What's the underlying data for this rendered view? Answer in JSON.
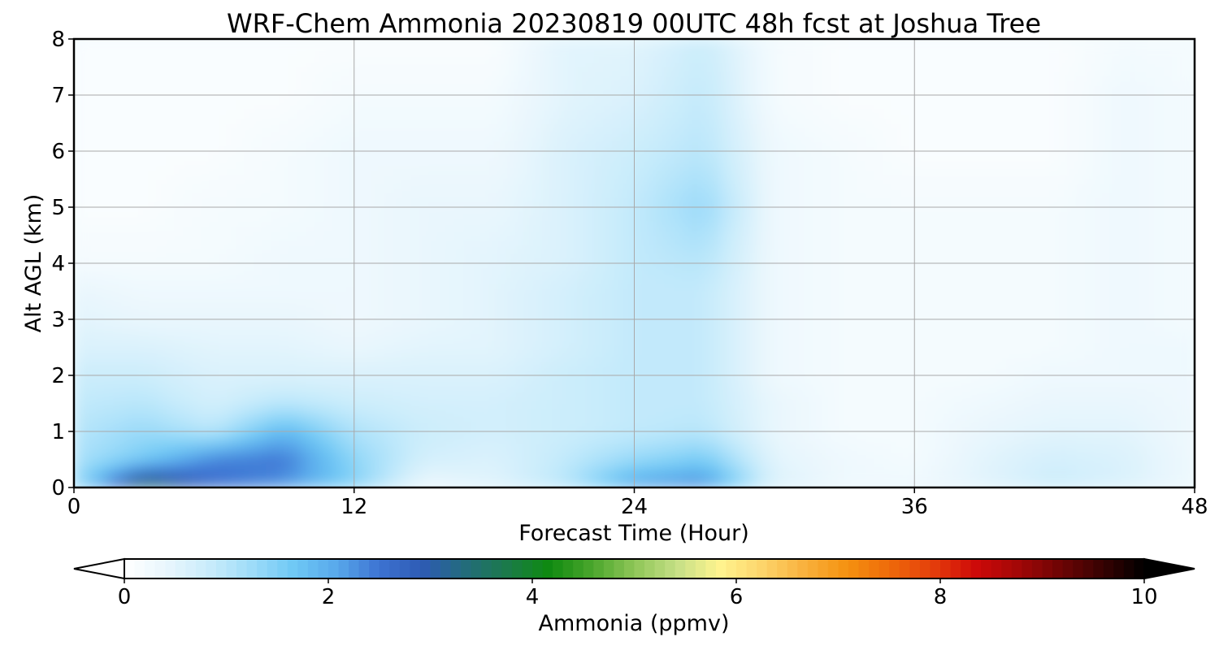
{
  "chart_data": {
    "type": "heatmap",
    "title": "WRF-Chem Ammonia  20230819 00UTC 48h fcst at Joshua Tree",
    "xlabel": "Forecast Time (Hour)",
    "ylabel": "Alt AGL (km)",
    "xlim": [
      0,
      48
    ],
    "ylim": [
      0,
      8
    ],
    "xticks": [
      0,
      12,
      24,
      36,
      48
    ],
    "yticks": [
      0,
      1,
      2,
      3,
      4,
      5,
      6,
      7,
      8
    ],
    "grid": true,
    "x": [
      0,
      3,
      6,
      9,
      12,
      15,
      18,
      21,
      24,
      27,
      30,
      33,
      36,
      39,
      42,
      45,
      48
    ],
    "y": [
      0,
      0.5,
      1,
      1.5,
      2,
      2.5,
      3,
      3.5,
      4,
      5,
      6,
      7,
      8
    ],
    "z": [
      [
        1.2,
        3.9,
        2.6,
        2.2,
        1.5,
        0.3,
        0.5,
        1.0,
        2.2,
        2.4,
        0.6,
        0.3,
        0.3,
        0.5,
        0.8,
        0.6,
        0.3
      ],
      [
        1.1,
        1.6,
        2.4,
        2.5,
        1.4,
        0.7,
        0.6,
        0.9,
        1.3,
        1.6,
        0.5,
        0.3,
        0.2,
        0.5,
        0.7,
        0.6,
        0.3
      ],
      [
        1.0,
        1.3,
        1.0,
        1.9,
        1.1,
        0.8,
        0.7,
        0.8,
        0.9,
        1.0,
        0.4,
        0.2,
        0.2,
        0.4,
        0.5,
        0.5,
        0.3
      ],
      [
        0.9,
        1.0,
        0.7,
        1.0,
        0.8,
        0.7,
        0.7,
        0.8,
        0.9,
        0.9,
        0.4,
        0.2,
        0.2,
        0.3,
        0.4,
        0.4,
        0.3
      ],
      [
        0.8,
        0.8,
        0.6,
        0.6,
        0.6,
        0.6,
        0.6,
        0.8,
        0.9,
        0.9,
        0.3,
        0.2,
        0.2,
        0.2,
        0.3,
        0.3,
        0.3
      ],
      [
        0.6,
        0.6,
        0.5,
        0.5,
        0.4,
        0.5,
        0.5,
        0.7,
        0.9,
        0.9,
        0.3,
        0.2,
        0.2,
        0.2,
        0.2,
        0.3,
        0.3
      ],
      [
        0.5,
        0.4,
        0.4,
        0.4,
        0.3,
        0.4,
        0.5,
        0.7,
        0.9,
        0.9,
        0.3,
        0.2,
        0.2,
        0.2,
        0.2,
        0.3,
        0.2
      ],
      [
        0.4,
        0.3,
        0.3,
        0.3,
        0.3,
        0.4,
        0.5,
        0.7,
        0.9,
        0.9,
        0.3,
        0.2,
        0.2,
        0.2,
        0.2,
        0.3,
        0.2
      ],
      [
        0.2,
        0.2,
        0.2,
        0.3,
        0.3,
        0.4,
        0.5,
        0.6,
        0.9,
        1.0,
        0.3,
        0.2,
        0.2,
        0.2,
        0.2,
        0.3,
        0.2
      ],
      [
        0.1,
        0.1,
        0.2,
        0.2,
        0.3,
        0.4,
        0.4,
        0.6,
        0.9,
        1.3,
        0.3,
        0.2,
        0.2,
        0.2,
        0.2,
        0.3,
        0.2
      ],
      [
        0.1,
        0.1,
        0.1,
        0.2,
        0.3,
        0.3,
        0.3,
        0.6,
        0.8,
        1.0,
        0.3,
        0.2,
        0.1,
        0.1,
        0.1,
        0.3,
        0.2
      ],
      [
        0.1,
        0.1,
        0.1,
        0.1,
        0.2,
        0.2,
        0.2,
        0.5,
        0.6,
        0.9,
        0.2,
        0.1,
        0.1,
        0.1,
        0.1,
        0.3,
        0.2
      ],
      [
        0.1,
        0.1,
        0.1,
        0.1,
        0.1,
        0.1,
        0.1,
        0.5,
        0.5,
        0.8,
        0.2,
        0.1,
        0.1,
        0.1,
        0.1,
        0.2,
        0.2
      ]
    ],
    "colorbar": {
      "label": "Ammonia  (ppmv)",
      "range": [
        0,
        10
      ],
      "ticks": [
        0,
        2,
        4,
        6,
        8,
        10
      ],
      "extend": "both",
      "colors": [
        "#ffffff",
        "#e8f6fd",
        "#c9ecfb",
        "#9edcf9",
        "#6ec8f5",
        "#58a8eb",
        "#3d73d2",
        "#2e5bb4",
        "#236b7c",
        "#1b7a4a",
        "#0f8a10",
        "#4aa62c",
        "#8ec657",
        "#c5df86",
        "#fff48f",
        "#fdd56b",
        "#f9b13d",
        "#f59210",
        "#ee6a0a",
        "#e53f0b",
        "#cf0a09",
        "#a40707",
        "#6f0404",
        "#380202",
        "#000000"
      ]
    }
  }
}
